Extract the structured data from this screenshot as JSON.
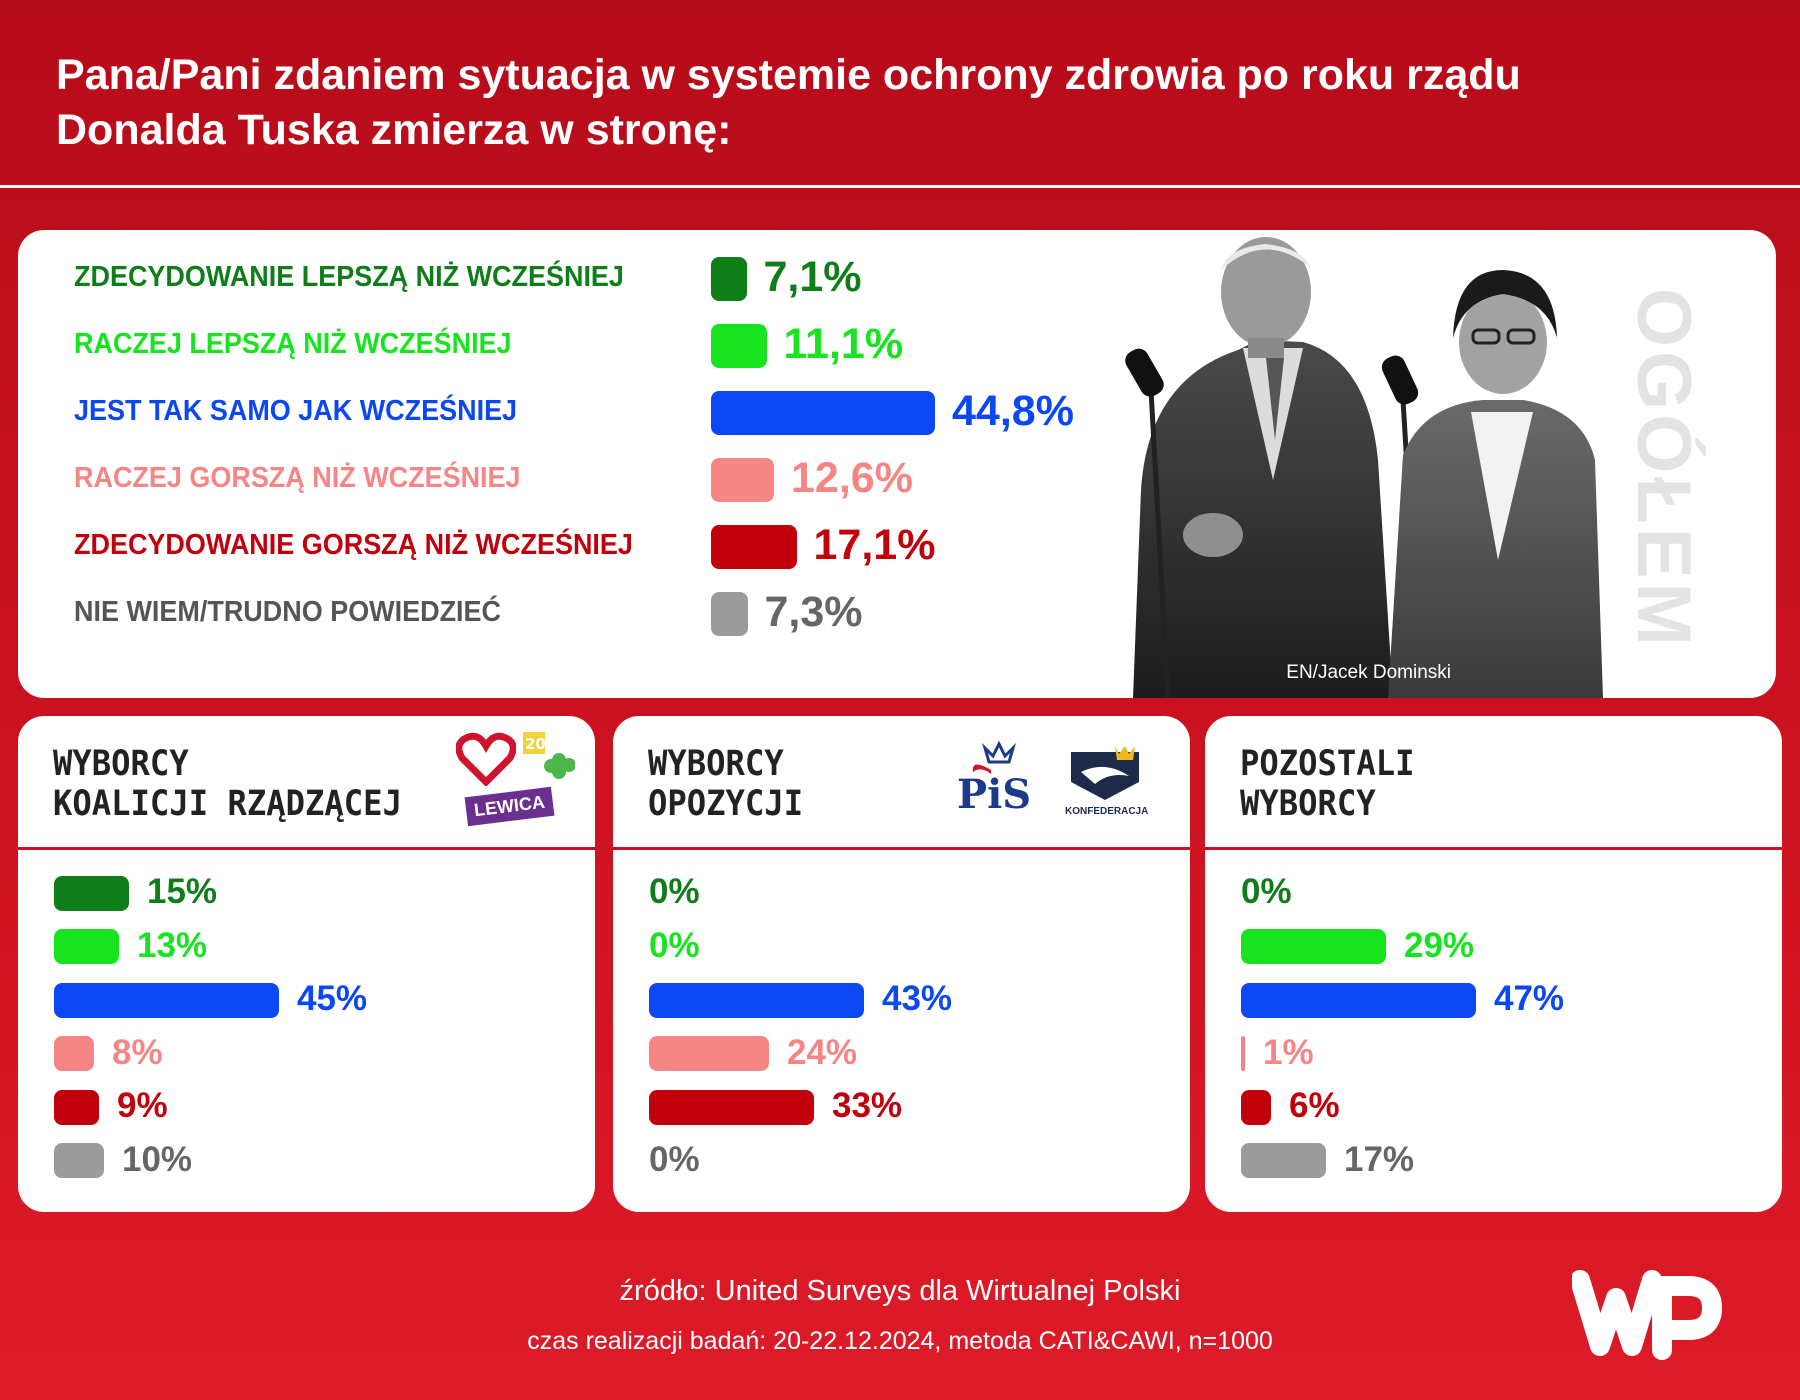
{
  "title_lines": [
    "Pana/Pani zdaniem sytuacja w systemie ochrony zdrowia po roku rządu",
    "Donalda Tuska zmierza w stronę:"
  ],
  "main": {
    "vertical_label": "OGÓŁEM",
    "photo_credit": "EN/Jacek Dominski"
  },
  "colors": {
    "much_better": "#0e7d1a",
    "rather_better": "#17e41f",
    "same": "#0b47f2",
    "rather_worse": "#f68585",
    "much_worse": "#c1000b",
    "dont_know": "#9b9b9b",
    "background": "#c8101f"
  },
  "chart_data": [
    {
      "type": "bar",
      "orientation": "horizontal",
      "title": "OGÓŁEM",
      "categories": [
        "ZDECYDOWANIE LEPSZĄ NIŻ WCZEŚNIEJ",
        "RACZEJ LEPSZĄ NIŻ WCZEŚNIEJ",
        "JEST TAK SAMO JAK WCZEŚNIEJ",
        "RACZEJ GORSZĄ NIŻ WCZEŚNIEJ",
        "ZDECYDOWANIE GORSZĄ NIŻ WCZEŚNIEJ",
        "NIE WIEM/TRUDNO POWIEDZIEĆ"
      ],
      "values": [
        7.1,
        11.1,
        44.8,
        12.6,
        17.1,
        7.3
      ],
      "labels": [
        "7,1%",
        "11,1%",
        "44,8%",
        "12,6%",
        "17,1%",
        "7,3%"
      ],
      "unit": "%"
    },
    {
      "type": "bar",
      "orientation": "horizontal",
      "title_lines": [
        "WYBORCY",
        "KOALICJI RZĄDZĄCEJ"
      ],
      "values": [
        15,
        13,
        45,
        8,
        9,
        10
      ],
      "labels": [
        "15%",
        "13%",
        "45%",
        "8%",
        "9%",
        "10%"
      ],
      "unit": "%"
    },
    {
      "type": "bar",
      "orientation": "horizontal",
      "title_lines": [
        "WYBORCY",
        "OPOZYCJI"
      ],
      "values": [
        0,
        0,
        43,
        24,
        33,
        0
      ],
      "labels": [
        "0%",
        "0%",
        "43%",
        "24%",
        "33%",
        "0%"
      ],
      "unit": "%"
    },
    {
      "type": "bar",
      "orientation": "horizontal",
      "title_lines": [
        "POZOSTALI",
        "WYBORCY"
      ],
      "values": [
        0,
        29,
        47,
        1,
        6,
        17
      ],
      "labels": [
        "0%",
        "29%",
        "47%",
        "1%",
        "6%",
        "17%"
      ],
      "unit": "%"
    }
  ],
  "logos": {
    "lewica": "LEWICA",
    "pis": "PiS",
    "konfederacja": "KONFEDERACJA",
    "wp_icon": "wp-logo-icon"
  },
  "footer": {
    "source": "źródło: United Surveys dla Wirtualnej Polski",
    "method": "czas realizacji badań: 20-22.12.2024, metoda CATI&CAWI, n=1000"
  }
}
